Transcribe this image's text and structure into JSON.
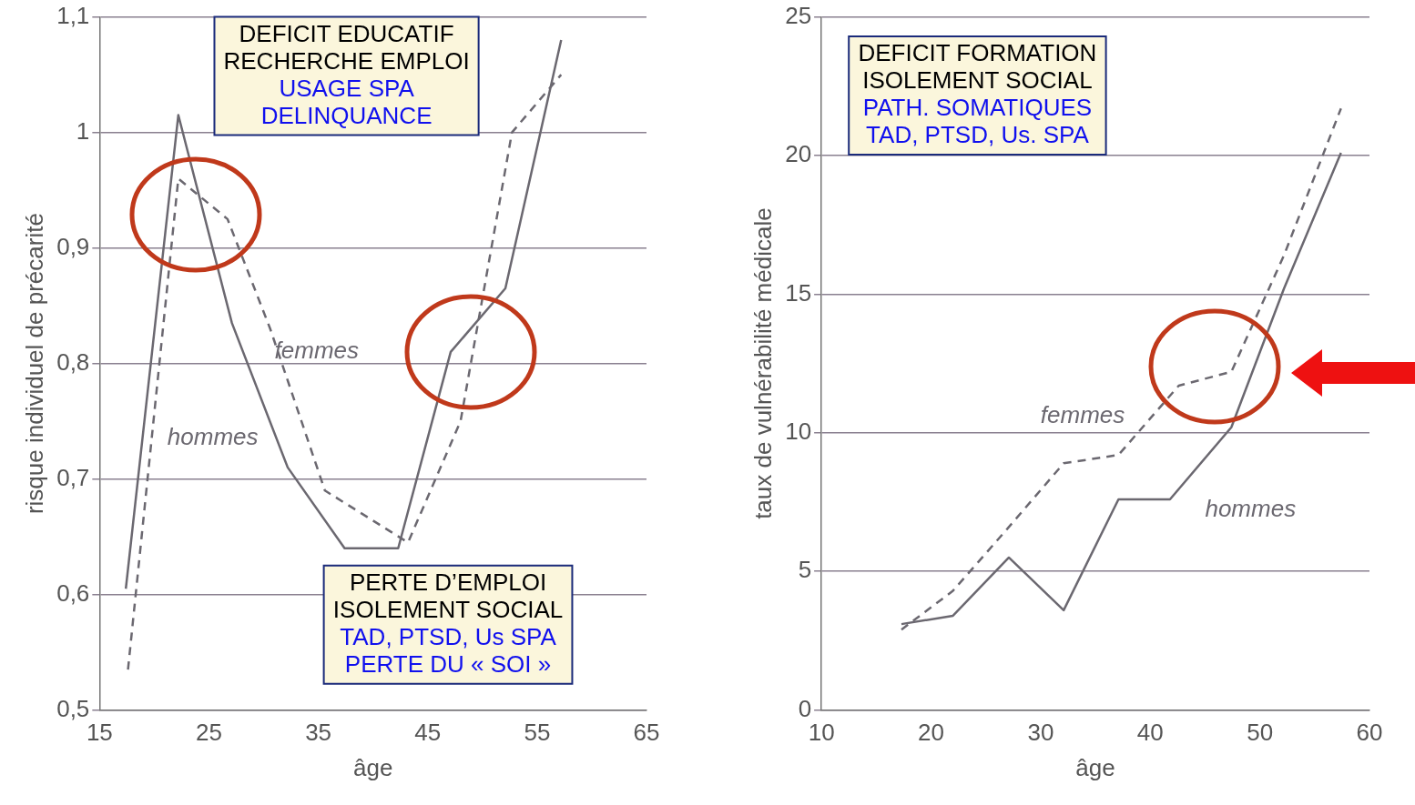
{
  "chart_data": [
    {
      "type": "line",
      "xlabel": "âge",
      "ylabel": "risque individuel de précarité",
      "xlim": [
        15,
        65
      ],
      "xticks": [
        15,
        25,
        35,
        45,
        55,
        65
      ],
      "ylim": [
        0.5,
        1.1
      ],
      "yticks": [
        {
          "value": 0.5,
          "label": "0,5"
        },
        {
          "value": 0.6,
          "label": "0,6"
        },
        {
          "value": 0.7,
          "label": "0,7"
        },
        {
          "value": 0.8,
          "label": "0,8"
        },
        {
          "value": 0.9,
          "label": "0,9"
        },
        {
          "value": 1,
          "label": "1"
        },
        {
          "value": 1.1,
          "label": "1,1"
        }
      ],
      "grid": "y",
      "legend": false,
      "marker": "none",
      "series": [
        {
          "name": "hommes",
          "color": "#6b6870",
          "line_style": "solid",
          "x": [
            17.4,
            22.2,
            27.1,
            32.2,
            37.4,
            42.3,
            47.1,
            52.1,
            57.2
          ],
          "values": [
            0.605,
            1.015,
            0.835,
            0.71,
            0.64,
            0.64,
            0.81,
            0.865,
            1.08
          ]
        },
        {
          "name": "femmes",
          "color": "#6b6870",
          "line_style": "dashed",
          "x": [
            17.6,
            22.2,
            26.7,
            30.6,
            35.6,
            43.2,
            48,
            52.7,
            57.2
          ],
          "values": [
            0.535,
            0.96,
            0.925,
            0.83,
            0.69,
            0.645,
            0.75,
            1.0,
            1.05
          ]
        }
      ],
      "annotations": [
        "DEFICIT EDUCATIF",
        "RECHERCHE EMPLOI",
        "USAGE SPA",
        "DELINQUANCE",
        "PERTE D’EMPLOI",
        "ISOLEMENT SOCIAL",
        "TAD, PTSD, Us SPA",
        "PERTE DU « SOI »"
      ]
    },
    {
      "type": "line",
      "xlabel": "âge",
      "ylabel": "taux de vulnérabilité médicale",
      "xlim": [
        10,
        60
      ],
      "xticks": [
        10,
        20,
        30,
        40,
        50,
        60
      ],
      "ylim": [
        0,
        25
      ],
      "yticks": [
        0,
        5,
        10,
        15,
        20,
        25
      ],
      "grid": "y",
      "legend": false,
      "marker": "none",
      "series": [
        {
          "name": "hommes",
          "color": "#6b6870",
          "line_style": "solid",
          "x": [
            17.3,
            22,
            27.1,
            32.1,
            37.1,
            41.8,
            47.4,
            52.2,
            57.4
          ],
          "values": [
            3.1,
            3.4,
            5.5,
            3.6,
            7.6,
            7.6,
            10.2,
            15.2,
            20.1
          ]
        },
        {
          "name": "femmes",
          "color": "#6b6870",
          "line_style": "dashed",
          "x": [
            17.3,
            22,
            27.1,
            32.1,
            37.1,
            42.6,
            47.4,
            52.2,
            57.4
          ],
          "values": [
            2.9,
            4.3,
            6.6,
            8.9,
            9.2,
            11.7,
            12.2,
            16.4,
            21.7
          ]
        }
      ],
      "annotations": [
        "DEFICIT FORMATION",
        "ISOLEMENT SOCIAL",
        "PATH. SOMATIQUES",
        "TAD, PTSD, Us. SPA"
      ]
    }
  ]
}
